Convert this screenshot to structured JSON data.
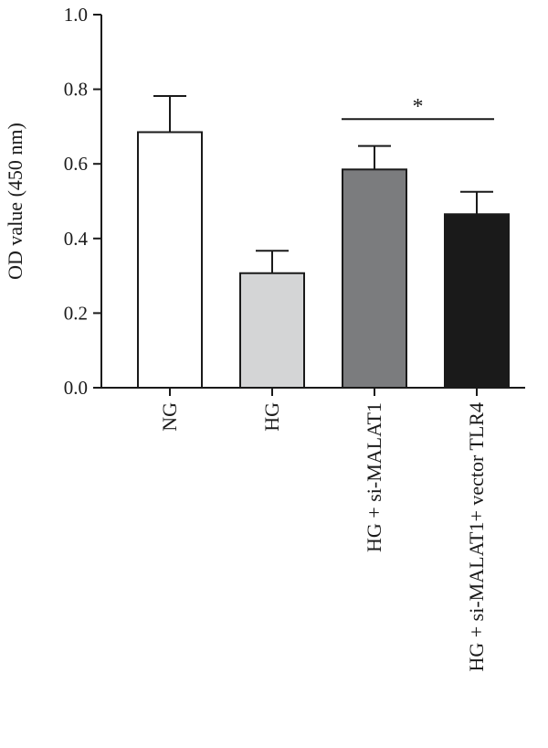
{
  "chart_data": {
    "type": "bar",
    "title": "",
    "xlabel": "",
    "ylabel": "OD value (450 nm)",
    "ylim": [
      0,
      1.0
    ],
    "yticks": [
      0.0,
      0.2,
      0.4,
      0.6,
      0.8,
      1.0
    ],
    "ytick_labels": [
      "0.0",
      "0.2",
      "0.4",
      "0.6",
      "0.8",
      "1.0"
    ],
    "categories": [
      "NG",
      "HG",
      "HG + si-MALAT1",
      "HG + si-MALAT1+ vector TLR4"
    ],
    "values": [
      0.685,
      0.307,
      0.585,
      0.465
    ],
    "errors": [
      0.097,
      0.06,
      0.063,
      0.06
    ],
    "bar_colors": [
      "#ffffff",
      "#d4d5d6",
      "#7b7c7e",
      "#1a1a1a"
    ],
    "grid": false,
    "legend": false,
    "significance": [
      {
        "between": [
          2,
          3
        ],
        "label": "*",
        "y": 0.72
      }
    ]
  }
}
